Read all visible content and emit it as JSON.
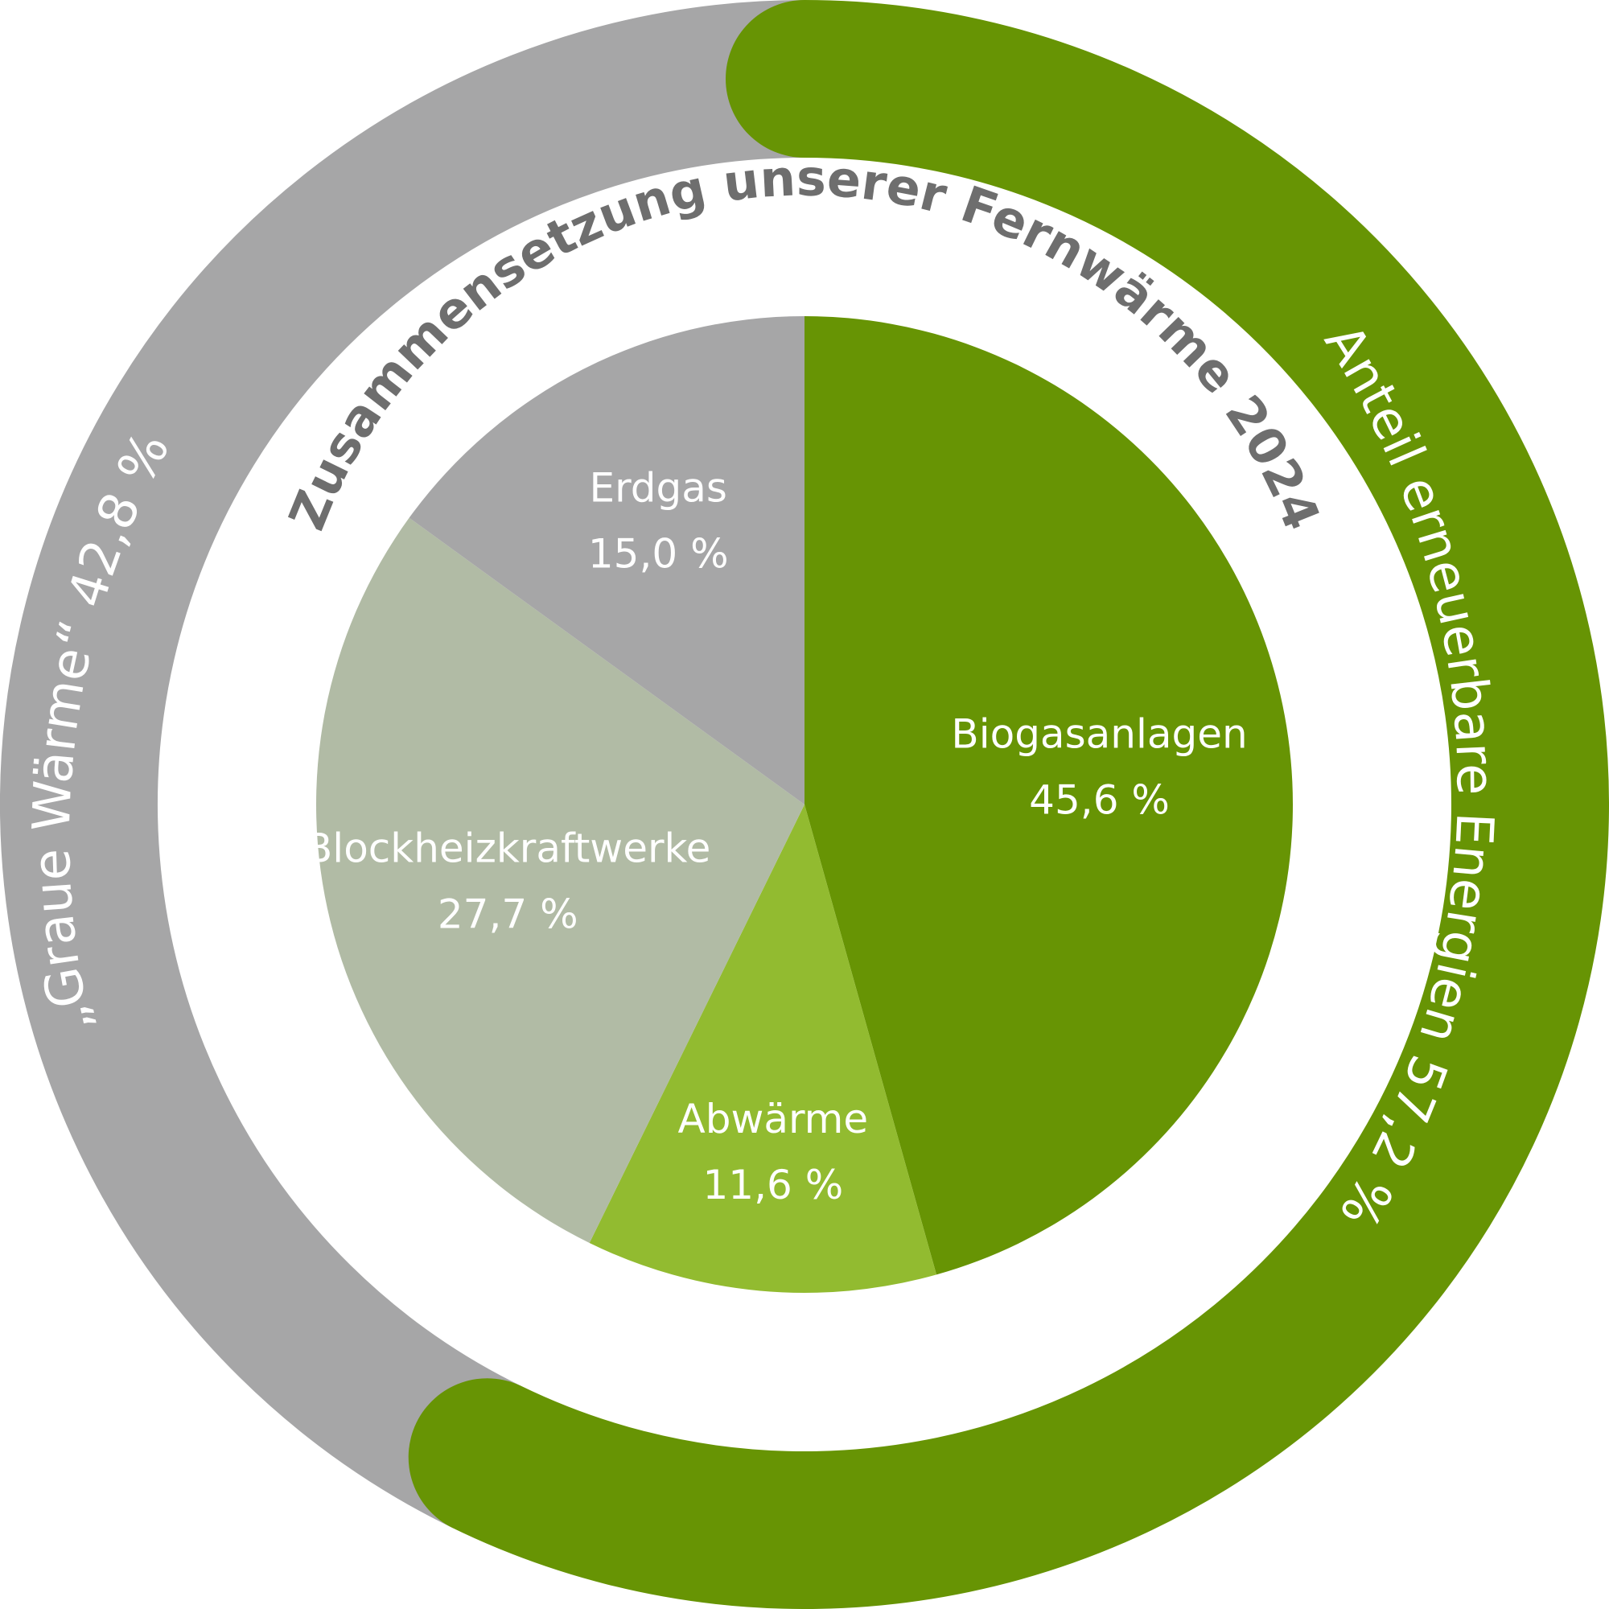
{
  "chart_data": {
    "type": "pie",
    "title": "Zusammensetzung unserer Fernwärme 2024",
    "slices": [
      {
        "label": "Biogasanlagen",
        "value": 45.6,
        "value_text": "45,6 %",
        "color": "#679404"
      },
      {
        "label": "Abwärme",
        "value": 11.6,
        "value_text": "11,6 %",
        "color": "#92bb30"
      },
      {
        "label": "Blockheizkraftwerke",
        "value": 27.7,
        "value_text": "27,7 %",
        "color": "#b1bba5"
      },
      {
        "label": "Erdgas",
        "value": 15.0,
        "value_text": "15,0 %",
        "color": "#a6a6a7"
      }
    ],
    "ring": [
      {
        "label": "Anteil erneuerbare Energien 57,2 %",
        "value": 57.2,
        "color": "#679404"
      },
      {
        "label": "„Graue Wärme“ 42,8 %",
        "value": 42.8,
        "color": "#a6a6a7"
      }
    ]
  }
}
